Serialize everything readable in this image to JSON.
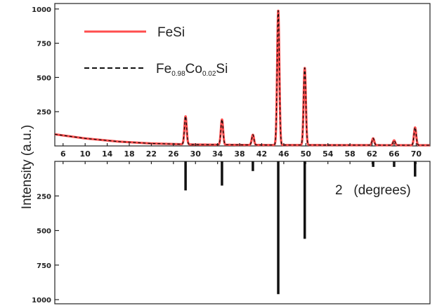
{
  "chart_data": {
    "type": "line",
    "ylabel": "Intensity (a.u.)",
    "xlabel": "2   (degrees)",
    "x_ticks": [
      6,
      10,
      14,
      18,
      22,
      26,
      30,
      34,
      38,
      42,
      46,
      50,
      54,
      58,
      62,
      66,
      70
    ],
    "xlim": [
      4.5,
      72.5
    ],
    "top_panel": {
      "ylim": [
        0,
        1040
      ],
      "y_ticks": [
        250,
        500,
        750,
        1000
      ],
      "series": [
        {
          "name": "FeSi",
          "color": "#ff4d4d",
          "style": "solid",
          "peaks": [
            {
              "x": 28.2,
              "y": 205
            },
            {
              "x": 34.8,
              "y": 185
            },
            {
              "x": 40.4,
              "y": 75
            },
            {
              "x": 45.0,
              "y": 985
            },
            {
              "x": 49.8,
              "y": 565
            },
            {
              "x": 62.2,
              "y": 50
            },
            {
              "x": 66.0,
              "y": 35
            },
            {
              "x": 69.8,
              "y": 130
            }
          ],
          "background": [
            {
              "x": 4.5,
              "y": 85
            },
            {
              "x": 10,
              "y": 55
            },
            {
              "x": 16,
              "y": 32
            },
            {
              "x": 22,
              "y": 18
            },
            {
              "x": 30,
              "y": 10
            },
            {
              "x": 40,
              "y": 7
            },
            {
              "x": 72.5,
              "y": 5
            }
          ]
        },
        {
          "name": "Fe0.98Co0.02Si",
          "name_parts": {
            "base1": "Fe",
            "sub1": "0.98",
            "base2": "Co",
            "sub2": "0.02",
            "base3": "Si"
          },
          "color": "#111111",
          "style": "dashed",
          "peaks": [
            {
              "x": 28.2,
              "y": 205
            },
            {
              "x": 34.8,
              "y": 185
            },
            {
              "x": 40.4,
              "y": 75
            },
            {
              "x": 45.0,
              "y": 985
            },
            {
              "x": 49.8,
              "y": 565
            },
            {
              "x": 62.2,
              "y": 50
            },
            {
              "x": 66.0,
              "y": 35
            },
            {
              "x": 69.8,
              "y": 130
            }
          ]
        }
      ]
    },
    "bottom_panel": {
      "type": "bar",
      "ylim": [
        0,
        1030
      ],
      "y_ticks": [
        250,
        500,
        750,
        1000
      ],
      "reference_lines": [
        {
          "x": 28.2,
          "value": 210
        },
        {
          "x": 34.8,
          "value": 175
        },
        {
          "x": 40.4,
          "value": 70
        },
        {
          "x": 45.0,
          "value": 960
        },
        {
          "x": 49.8,
          "value": 560
        },
        {
          "x": 62.2,
          "value": 40
        },
        {
          "x": 66.0,
          "value": 40
        },
        {
          "x": 69.8,
          "value": 110
        }
      ]
    }
  }
}
